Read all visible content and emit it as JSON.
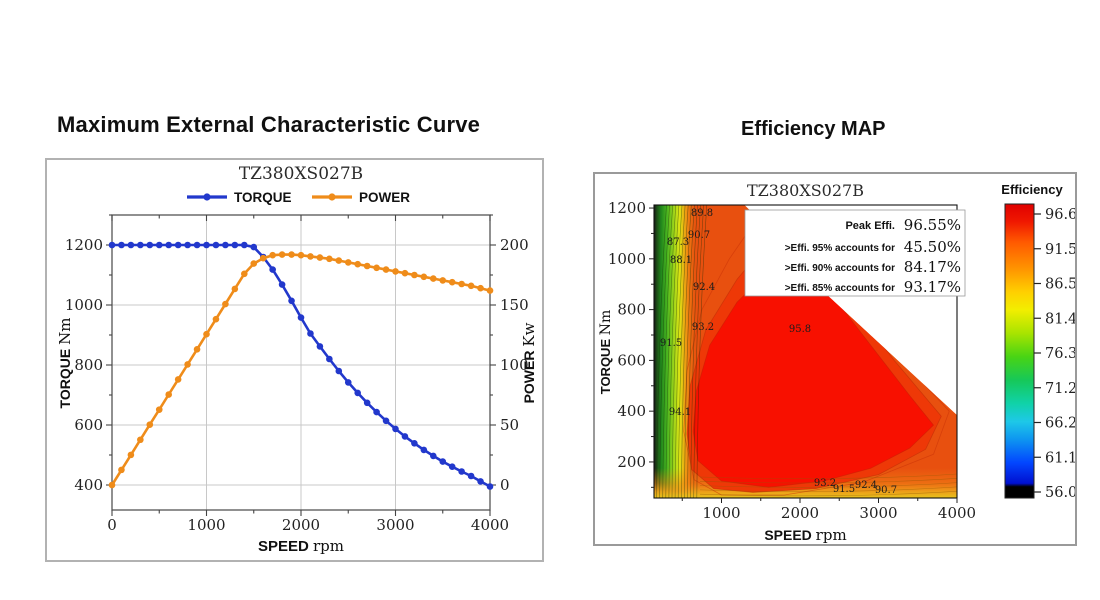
{
  "page": {
    "left_title": "Maximum External Characteristic Curve",
    "right_title": "Efficiency MAP"
  },
  "chart_data": [
    {
      "type": "line",
      "title": "TZ380XS027B",
      "xlabel": "SPEED",
      "xunit": "rpm",
      "ylabel_left": "TORQUE",
      "yunit_left": "Nm",
      "ylabel_right": "POWER",
      "yunit_right": "Kw",
      "xlim": [
        0,
        4000
      ],
      "x_ticks": [
        0,
        1000,
        2000,
        3000,
        4000
      ],
      "y_ticks_left": [
        400,
        600,
        800,
        1000,
        1200
      ],
      "y_ticks_right": [
        0,
        50,
        100,
        150,
        200
      ],
      "grid": true,
      "legend_position": "top",
      "legend": [
        {
          "name": "TORQUE",
          "color": "#2238cc"
        },
        {
          "name": "POWER",
          "color": "#ef8c1a"
        }
      ],
      "x": [
        0,
        100,
        200,
        300,
        400,
        500,
        600,
        700,
        800,
        900,
        1000,
        1100,
        1200,
        1300,
        1400,
        1500,
        1600,
        1700,
        1800,
        1900,
        2000,
        2100,
        2200,
        2300,
        2400,
        2500,
        2600,
        2700,
        2800,
        2900,
        3000,
        3100,
        3200,
        3300,
        3400,
        3500,
        3600,
        3700,
        3800,
        3900,
        4000
      ],
      "series": [
        {
          "name": "TORQUE",
          "axis": "left",
          "color": "#2238cc",
          "values": [
            1200,
            1200,
            1200,
            1200,
            1200,
            1200,
            1200,
            1200,
            1200,
            1200,
            1200,
            1200,
            1200,
            1200,
            1200,
            1193,
            1160,
            1118,
            1068,
            1014,
            958,
            905,
            862,
            820,
            780,
            742,
            707,
            674,
            643,
            614,
            587,
            562,
            539,
            517,
            497,
            478,
            461,
            445,
            430,
            412,
            395
          ]
        },
        {
          "name": "POWER",
          "axis": "right",
          "color": "#ef8c1a",
          "values": [
            0,
            12.6,
            25.1,
            37.7,
            50.3,
            62.8,
            75.4,
            88.0,
            100.5,
            113.1,
            125.7,
            138.2,
            150.8,
            163.4,
            176.0,
            184.5,
            189.0,
            191.5,
            192.0,
            192.0,
            191.5,
            190.5,
            189.5,
            188.5,
            187.0,
            185.5,
            184.0,
            182.5,
            181.0,
            179.5,
            178.0,
            176.5,
            175.0,
            173.5,
            172.0,
            170.5,
            169.0,
            167.5,
            166.0,
            164.0,
            162.0
          ]
        }
      ]
    },
    {
      "type": "heatmap",
      "title": "TZ380XS027B",
      "xlabel": "SPEED",
      "xunit": "rpm",
      "ylabel": "TORQUE",
      "yunit": "Nm",
      "xlim": [
        140,
        4000
      ],
      "ylim": [
        58,
        1212
      ],
      "x_ticks": [
        1000,
        2000,
        3000,
        4000
      ],
      "y_ticks": [
        200,
        400,
        600,
        800,
        1000,
        1200
      ],
      "annotation": {
        "peak_label": "Peak Effi.",
        "peak_value": "96.55%",
        "rows": [
          {
            "label": ">Effi. 95% accounts for",
            "value": "45.50%"
          },
          {
            "label": ">Effi. 90% accounts for",
            "value": "84.17%"
          },
          {
            "label": ">Effi. 85% accounts for",
            "value": "93.17%"
          }
        ]
      },
      "colorbar": {
        "label": "Efficiency",
        "ticks": [
          "96.6",
          "91.5",
          "86.5",
          "81.4",
          "76.3",
          "71.2",
          "66.2",
          "61.1",
          "56.0"
        ]
      },
      "palette": {
        "base": "#e8500f",
        "mid": "#ee3807",
        "core": "#f81000",
        "ring_stroke": "rgba(200,50,8,0.55)"
      },
      "domain_boundary": [
        [
          140,
          1210
        ],
        [
          1300,
          1210
        ],
        [
          1935,
          1015
        ],
        [
          1935,
          975
        ],
        [
          4000,
          385
        ],
        [
          4000,
          60
        ],
        [
          140,
          60
        ]
      ],
      "ring_contour": [
        [
          1500,
          1180
        ],
        [
          2700,
          800
        ],
        [
          3900,
          400
        ],
        [
          3700,
          230
        ],
        [
          2800,
          120
        ],
        [
          1800,
          70
        ],
        [
          1000,
          70
        ],
        [
          650,
          130
        ],
        [
          520,
          320
        ],
        [
          560,
          560
        ],
        [
          750,
          800
        ],
        [
          1100,
          1000
        ]
      ],
      "mid_contour": [
        [
          1750,
          1120
        ],
        [
          2500,
          880
        ],
        [
          3200,
          600
        ],
        [
          3800,
          380
        ],
        [
          3600,
          250
        ],
        [
          3000,
          150
        ],
        [
          2200,
          95
        ],
        [
          1400,
          80
        ],
        [
          900,
          95
        ],
        [
          620,
          170
        ],
        [
          560,
          310
        ],
        [
          600,
          500
        ],
        [
          800,
          720
        ],
        [
          1200,
          920
        ],
        [
          1500,
          1030
        ]
      ],
      "core_contour": [
        [
          1900,
          1010
        ],
        [
          2400,
          860
        ],
        [
          2900,
          660
        ],
        [
          3400,
          460
        ],
        [
          3700,
          345
        ],
        [
          3400,
          255
        ],
        [
          2900,
          175
        ],
        [
          2300,
          125
        ],
        [
          1600,
          100
        ],
        [
          1000,
          125
        ],
        [
          700,
          205
        ],
        [
          640,
          320
        ],
        [
          680,
          480
        ],
        [
          850,
          660
        ],
        [
          1200,
          830
        ],
        [
          1600,
          950
        ]
      ],
      "contour_labels": [
        {
          "v": "89.8",
          "s": 751,
          "t": 1180
        },
        {
          "v": "90.7",
          "s": 713,
          "t": 1094
        },
        {
          "v": "87.3",
          "s": 446,
          "t": 1066
        },
        {
          "v": "88.1",
          "s": 484,
          "t": 995
        },
        {
          "v": "92.4",
          "s": 777,
          "t": 889
        },
        {
          "v": "93.2",
          "s": 764,
          "t": 731
        },
        {
          "v": "91.5",
          "s": 357,
          "t": 668
        },
        {
          "v": "95.8",
          "s": 2000,
          "t": 723
        },
        {
          "v": "94.1",
          "s": 471,
          "t": 397
        },
        {
          "v": "93.2",
          "s": 2318,
          "t": 117
        },
        {
          "v": "91.5",
          "s": 2560,
          "t": 93
        },
        {
          "v": "92.4",
          "s": 2841,
          "t": 109
        },
        {
          "v": "90.7",
          "s": 3095,
          "t": 89
        }
      ]
    }
  ]
}
